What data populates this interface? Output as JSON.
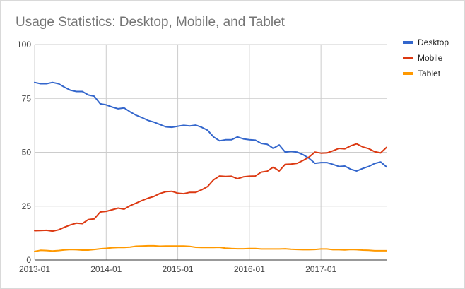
{
  "chart_data": {
    "type": "line",
    "title": "Usage Statistics: Desktop, Mobile, and Tablet",
    "xlabel": "",
    "ylabel": "",
    "ylim": [
      0,
      100
    ],
    "yticks": [
      0,
      25,
      50,
      75,
      100
    ],
    "xlim": [
      "2013-01",
      "2017-12"
    ],
    "xticks": [
      "2013-01",
      "2014-01",
      "2015-01",
      "2016-01",
      "2017-01"
    ],
    "grid": true,
    "legend_position": "right",
    "x": [
      "2013-01",
      "2013-02",
      "2013-03",
      "2013-04",
      "2013-05",
      "2013-06",
      "2013-07",
      "2013-08",
      "2013-09",
      "2013-10",
      "2013-11",
      "2013-12",
      "2014-01",
      "2014-02",
      "2014-03",
      "2014-04",
      "2014-05",
      "2014-06",
      "2014-07",
      "2014-08",
      "2014-09",
      "2014-10",
      "2014-11",
      "2014-12",
      "2015-01",
      "2015-02",
      "2015-03",
      "2015-04",
      "2015-05",
      "2015-06",
      "2015-07",
      "2015-08",
      "2015-09",
      "2015-10",
      "2015-11",
      "2015-12",
      "2016-01",
      "2016-02",
      "2016-03",
      "2016-04",
      "2016-05",
      "2016-06",
      "2016-07",
      "2016-08",
      "2016-09",
      "2016-10",
      "2016-11",
      "2016-12",
      "2017-01",
      "2017-02",
      "2017-03",
      "2017-04",
      "2017-05",
      "2017-06",
      "2017-07",
      "2017-08",
      "2017-09",
      "2017-10",
      "2017-11",
      "2017-12"
    ],
    "series": [
      {
        "name": "Desktop",
        "color": "#3366cc",
        "values": [
          82.4,
          81.8,
          81.8,
          82.4,
          81.8,
          80.2,
          78.8,
          78.2,
          78.2,
          76.6,
          76.0,
          72.5,
          72.0,
          71.0,
          70.2,
          70.6,
          68.8,
          67.2,
          66.1,
          64.8,
          64.0,
          62.9,
          61.8,
          61.6,
          62.1,
          62.5,
          62.2,
          62.6,
          61.6,
          60.2,
          57.1,
          55.3,
          55.8,
          55.8,
          57.1,
          56.2,
          55.8,
          55.6,
          54.1,
          53.7,
          51.8,
          53.4,
          50.1,
          50.4,
          50.1,
          48.9,
          47.2,
          44.9,
          45.2,
          45.2,
          44.4,
          43.4,
          43.6,
          42.1,
          41.3,
          42.5,
          43.4,
          44.8,
          45.5,
          43.2
        ]
      },
      {
        "name": "Mobile",
        "color": "#dc3912",
        "values": [
          13.6,
          13.7,
          13.8,
          13.4,
          14.0,
          15.2,
          16.3,
          17.1,
          16.9,
          18.8,
          19.1,
          22.3,
          22.6,
          23.3,
          24.1,
          23.6,
          25.2,
          26.4,
          27.6,
          28.7,
          29.5,
          30.9,
          31.7,
          31.9,
          31.0,
          30.8,
          31.4,
          31.4,
          32.6,
          34.1,
          37.2,
          39.0,
          38.8,
          38.9,
          37.7,
          38.6,
          38.9,
          39.0,
          40.8,
          41.2,
          43.1,
          41.3,
          44.4,
          44.5,
          44.9,
          46.2,
          47.8,
          50.1,
          49.6,
          49.7,
          50.7,
          51.8,
          51.6,
          53.0,
          53.9,
          52.5,
          51.7,
          50.3,
          49.7,
          52.3
        ]
      },
      {
        "name": "Tablet",
        "color": "#ff9900",
        "values": [
          4.0,
          4.5,
          4.4,
          4.2,
          4.4,
          4.7,
          4.9,
          4.8,
          4.6,
          4.6,
          4.9,
          5.2,
          5.4,
          5.7,
          5.8,
          5.8,
          6.0,
          6.4,
          6.5,
          6.6,
          6.6,
          6.4,
          6.5,
          6.5,
          6.5,
          6.5,
          6.3,
          5.9,
          5.8,
          5.8,
          5.8,
          5.9,
          5.5,
          5.3,
          5.2,
          5.2,
          5.3,
          5.3,
          5.1,
          5.1,
          5.1,
          5.1,
          5.2,
          5.0,
          4.9,
          4.8,
          4.8,
          4.9,
          5.1,
          5.1,
          4.8,
          4.8,
          4.7,
          4.9,
          4.8,
          4.6,
          4.5,
          4.3,
          4.3,
          4.3
        ]
      }
    ]
  }
}
